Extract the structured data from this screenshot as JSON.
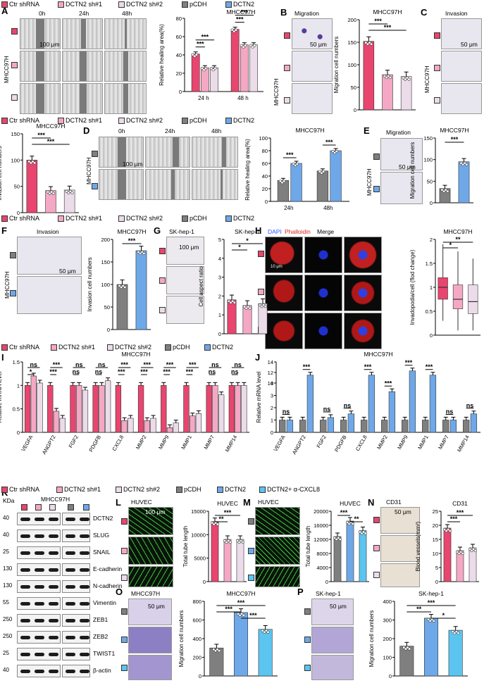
{
  "colors": {
    "ctr": "#e8456f",
    "sh1": "#f4a8c4",
    "sh2": "#ecdcea",
    "pcdh": "#7f7f7f",
    "dctn2": "#6fa8e8",
    "cxcl8": "#5bc5f0"
  },
  "legend": {
    "ctr": "Ctr shRNA",
    "sh1": "DCTN2 sh#1",
    "sh2": "DCTN2 sh#2",
    "pcdh": "pCDH",
    "dctn2": "DCTN2",
    "cxcl8": "DCTN2+ α-CXCL8"
  },
  "panels": {
    "A": "A",
    "B": "B",
    "C": "C",
    "D": "D",
    "E": "E",
    "F": "F",
    "G": "G",
    "H": "H",
    "I": "I",
    "J": "J",
    "K": "K",
    "L": "L",
    "M": "M",
    "N": "N",
    "O": "O",
    "P": "P"
  },
  "common": {
    "cell": "MHCC97H",
    "sk": "SK-hep-1",
    "huvec": "HUVEC",
    "cd31": "CD31",
    "time0": "0h",
    "time24": "24h",
    "time48": "48h",
    "scale100": "100 μm",
    "scale50": "50 μm",
    "scale10": "10 μm",
    "migration": "Migration",
    "invasion": "Invasion",
    "kda": "KDa",
    "sig3": "***",
    "sig2": "**",
    "sig1": "*",
    "ns": "ns"
  },
  "panelH": {
    "dapi": "DAPI",
    "phalloidin": "Phalloidin",
    "merge": "Merge"
  },
  "axes": {
    "heal": "Relative healing area(%)",
    "mig": "Migration cell numbers",
    "inv": "Invasion cell numbers",
    "aspect": "Cell aspect ratio",
    "invado": "Invadopodia/cell (flod change)",
    "mrna": "Relative mRNA level",
    "tube": "Total tube length",
    "vessels": "Blood vessels(mm²)"
  },
  "panelK": {
    "proteins": [
      "DCTN2",
      "SLUG",
      "SNAIL",
      "E-cadherin",
      "N-cadherin",
      "Vimentin",
      "ZEB1",
      "ZEB2",
      "TWIST1",
      "β-actin"
    ],
    "kda": [
      "40",
      "40",
      "25",
      "130",
      "130",
      "55",
      "250",
      "250",
      "25",
      "40"
    ]
  },
  "chart_data": [
    {
      "panel": "A",
      "type": "bar",
      "categories": [
        "24 h",
        "48 h"
      ],
      "series": [
        {
          "name": "Ctr shRNA",
          "values": [
            41,
            68
          ]
        },
        {
          "name": "DCTN2 sh#1",
          "values": [
            26,
            51
          ]
        },
        {
          "name": "DCTN2 sh#2",
          "values": [
            26,
            51
          ]
        }
      ],
      "ylabel": "Relative healing area(%)",
      "ylim": [
        0,
        80
      ],
      "yticks": [
        0,
        20,
        40,
        60,
        80
      ]
    },
    {
      "panel": "B",
      "type": "bar",
      "categories": [
        "Ctr shRNA",
        "DCTN2 sh#1",
        "DCTN2 sh#2"
      ],
      "values": [
        152,
        78,
        74
      ],
      "title": "MHCC97H",
      "ylabel": "Migration cell numbers",
      "ylim": [
        0,
        200
      ],
      "yticks": [
        0,
        50,
        100,
        150,
        200
      ]
    },
    {
      "panel": "C",
      "type": "bar",
      "categories": [
        "Ctr shRNA",
        "DCTN2 sh#1",
        "DCTN2 sh#2"
      ],
      "values": [
        100,
        42,
        43
      ],
      "title": "MHCC97H",
      "ylabel": "Invasion cell numbers",
      "ylim": [
        0,
        150
      ],
      "yticks": [
        0,
        50,
        100,
        150
      ]
    },
    {
      "panel": "D",
      "type": "bar",
      "categories": [
        "24h",
        "48h"
      ],
      "series": [
        {
          "name": "pCDH",
          "values": [
            33,
            48
          ]
        },
        {
          "name": "DCTN2",
          "values": [
            60,
            80
          ]
        }
      ],
      "title": "MHCC97H",
      "ylabel": "Relative healing area(%)",
      "ylim": [
        0,
        100
      ],
      "yticks": [
        0,
        20,
        40,
        60,
        80,
        100
      ]
    },
    {
      "panel": "E",
      "type": "bar",
      "categories": [
        "pCDH",
        "DCTN2"
      ],
      "values": [
        33,
        95
      ],
      "title": "MHCC97H",
      "ylabel": "Migration cell numbers",
      "ylim": [
        0,
        150
      ],
      "yticks": [
        0,
        50,
        100,
        150
      ]
    },
    {
      "panel": "F",
      "type": "bar",
      "categories": [
        "pCDH",
        "DCTN2"
      ],
      "values": [
        100,
        175
      ],
      "title": "MHCC97H",
      "ylabel": "Invasion cell numbers",
      "ylim": [
        0,
        200
      ],
      "yticks": [
        0,
        50,
        100,
        150,
        200
      ]
    },
    {
      "panel": "G",
      "type": "bar",
      "categories": [
        "Ctr shRNA",
        "DCTN2 sh#1",
        "DCTN2 sh#2"
      ],
      "values": [
        1.8,
        1.5,
        1.6
      ],
      "title": "SK-hep-1",
      "ylabel": "Cell aspect ratio",
      "ylim": [
        0,
        5
      ],
      "yticks": [
        0,
        1,
        2,
        3,
        4,
        5
      ]
    },
    {
      "panel": "H",
      "type": "box",
      "categories": [
        "Ctr shRNA",
        "DCTN2 sh#1",
        "DCTN2 sh#2"
      ],
      "medians": [
        1.0,
        0.75,
        0.7
      ],
      "q1": [
        0.75,
        0.55,
        0.45
      ],
      "q3": [
        1.2,
        1.05,
        1.05
      ],
      "min": [
        0.3,
        0.1,
        0.1
      ],
      "max": [
        1.9,
        1.75,
        1.6
      ],
      "title": "MHCC97H",
      "ylabel": "Invadopodia/cell (flod change)",
      "ylim": [
        0,
        2
      ],
      "yticks": [
        0,
        0.5,
        1.0,
        1.5,
        2.0
      ]
    },
    {
      "panel": "I",
      "type": "bar",
      "categories": [
        "VEGFA",
        "ANGPT2",
        "FGF2",
        "PDGFB",
        "CXCL8",
        "MMP2",
        "MMP9",
        "MMP1",
        "MMP7",
        "MMP14"
      ],
      "series": [
        {
          "name": "Ctr shRNA",
          "values": [
            1.0,
            1.0,
            1.0,
            1.0,
            1.0,
            1.0,
            1.0,
            1.0,
            1.0,
            1.0
          ]
        },
        {
          "name": "DCTN2 sh#1",
          "values": [
            1.2,
            0.45,
            1.0,
            1.0,
            0.25,
            0.25,
            0.1,
            0.35,
            1.0,
            1.0
          ]
        },
        {
          "name": "DCTN2 sh#2",
          "values": [
            1.05,
            0.3,
            0.9,
            1.1,
            0.3,
            0.3,
            0.2,
            0.4,
            0.8,
            1.0
          ]
        }
      ],
      "title": "MHCC97H",
      "ylabel": "Relative mRNA level",
      "ylim": [
        0,
        1.5
      ],
      "yticks": [
        0,
        0.5,
        1.0,
        1.5
      ]
    },
    {
      "panel": "J",
      "type": "bar",
      "categories": [
        "VEGFA",
        "ANGPT2",
        "FGF2",
        "PDGFB",
        "CXCL8",
        "MMP2",
        "MMP9",
        "MMP1",
        "MMP7",
        "MMP14"
      ],
      "series": [
        {
          "name": "pCDH",
          "values": [
            1.0,
            1.0,
            1.0,
            1.0,
            1.0,
            1.0,
            1.0,
            1.0,
            1.0,
            1.0
          ]
        },
        {
          "name": "DCTN2",
          "values": [
            1.0,
            11.5,
            1.2,
            1.5,
            11.5,
            3.3,
            12.3,
            11.5,
            1.0,
            1.5
          ]
        }
      ],
      "title": "MHCC97H",
      "ylabel": "Relative mRNA level",
      "yticks": [
        0,
        1,
        2,
        3,
        4,
        10,
        12,
        14
      ]
    },
    {
      "panel": "L",
      "type": "bar",
      "categories": [
        "Ctr shRNA",
        "DCTN2 sh#1",
        "DCTN2 sh#2"
      ],
      "values": [
        12800,
        9000,
        9000
      ],
      "title": "HUVEC",
      "ylabel": "Total tube length",
      "ylim": [
        0,
        15000
      ],
      "yticks": [
        0,
        5000,
        10000,
        15000
      ]
    },
    {
      "panel": "M",
      "type": "bar",
      "categories": [
        "pCDH",
        "DCTN2",
        "DCTN2+ α-CXCL8"
      ],
      "values": [
        12800,
        17200,
        14500
      ],
      "title": "HUVEC",
      "ylabel": "Total tube length",
      "ylim": [
        0,
        20000
      ],
      "yticks": [
        0,
        4000,
        8000,
        12000,
        16000,
        20000
      ]
    },
    {
      "panel": "N",
      "type": "bar",
      "categories": [
        "Ctr shRNA",
        "DCTN2 sh#1",
        "DCTN2 sh#2"
      ],
      "values": [
        19,
        11,
        12
      ],
      "title": "CD31",
      "ylabel": "Blood vessels(mm²)",
      "ylim": [
        0,
        25
      ],
      "yticks": [
        0,
        5,
        10,
        15,
        20,
        25
      ]
    },
    {
      "panel": "O",
      "type": "bar",
      "categories": [
        "pCDH",
        "DCTN2",
        "DCTN2+ α-CXCL8"
      ],
      "values": [
        300,
        680,
        500
      ],
      "title": "MHCC97H",
      "ylabel": "Migration cell numbers",
      "ylim": [
        0,
        800
      ],
      "yticks": [
        0,
        200,
        400,
        600,
        800
      ]
    },
    {
      "panel": "P",
      "type": "bar",
      "categories": [
        "pCDH",
        "DCTN2",
        "DCTN2+ α-CXCL8"
      ],
      "values": [
        160,
        310,
        245
      ],
      "title": "SK-hep-1",
      "ylabel": "Migration cell numbers",
      "ylim": [
        0,
        400
      ],
      "yticks": [
        0,
        100,
        200,
        300,
        400
      ]
    }
  ]
}
